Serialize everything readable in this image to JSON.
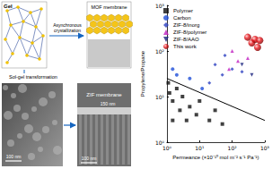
{
  "chart_data": {
    "type": "scatter",
    "xlabel": "Permeance (×10⁻¹⁰ mol m⁻² s⁻¹ Pa⁻¹)",
    "ylabel": "Propylene/Propane",
    "log": true,
    "grid": false,
    "legend": "upper left",
    "xlim": [
      1,
      1000
    ],
    "ylim": [
      1,
      1000
    ],
    "xticks": [
      {
        "value": 1,
        "label": "10⁰"
      },
      {
        "value": 10,
        "label": "10¹"
      },
      {
        "value": 100,
        "label": "10²"
      },
      {
        "value": 1000,
        "label": "10³"
      }
    ],
    "yticks": [
      {
        "value": 1,
        "label": "10⁰"
      },
      {
        "value": 10,
        "label": "10¹"
      },
      {
        "value": 100,
        "label": "10²"
      },
      {
        "value": 1000,
        "label": "10³"
      }
    ],
    "series": [
      {
        "name": "Polymer",
        "color": "#111111",
        "marker": "square",
        "x": [
          1.2,
          1.5,
          2,
          2.5,
          3,
          4,
          5,
          8,
          10,
          1.5,
          20,
          30,
          50,
          1.1
        ],
        "values": [
          12,
          8,
          15,
          5,
          10,
          3,
          6,
          4,
          8,
          3,
          3,
          5,
          2.5,
          20
        ]
      },
      {
        "name": "Carbon",
        "color": "#1f4fd8",
        "marker": "circle",
        "x": [
          1.5,
          2,
          5,
          12
        ],
        "values": [
          40,
          30,
          25,
          15
        ]
      },
      {
        "name": "ZIF-8/inorg",
        "color": "#2a3fc0",
        "marker": "diamond",
        "x": [
          20,
          30,
          50,
          60,
          100,
          200
        ],
        "values": [
          20,
          50,
          30,
          80,
          40,
          35
        ]
      },
      {
        "name": "ZIF-8/polymer",
        "color": "#c020c0",
        "marker": "triangle",
        "x": [
          80,
          100,
          150,
          300
        ],
        "values": [
          40,
          100,
          60,
          70
        ]
      },
      {
        "name": "ZIF-8/AAO",
        "color": "#1a237e",
        "marker": "triangle_down",
        "x": [
          200,
          400
        ],
        "values": [
          50,
          30
        ]
      },
      {
        "name": "This work",
        "color": "#e8141b",
        "marker": "sphere",
        "x": [
          300,
          400,
          500,
          600,
          700
        ],
        "values": [
          200,
          150,
          180,
          120,
          170
        ]
      },
      {
        "type": "line",
        "color": "#000000",
        "line_style": "solid",
        "x": [
          1,
          1000
        ],
        "values": [
          25,
          3
        ]
      }
    ]
  },
  "diagram": {
    "gel_label": "Gel",
    "top_arrow_label": "Asynchronous crystallization",
    "mof_label": "MOF membrane",
    "left_arrow_label": "Sol-gel transformation",
    "zif_label": "ZIF membrane",
    "sem_left_scale": "100 nm",
    "sem_right_scale": "100 nm",
    "sem_right_thickness": "150 nm"
  }
}
